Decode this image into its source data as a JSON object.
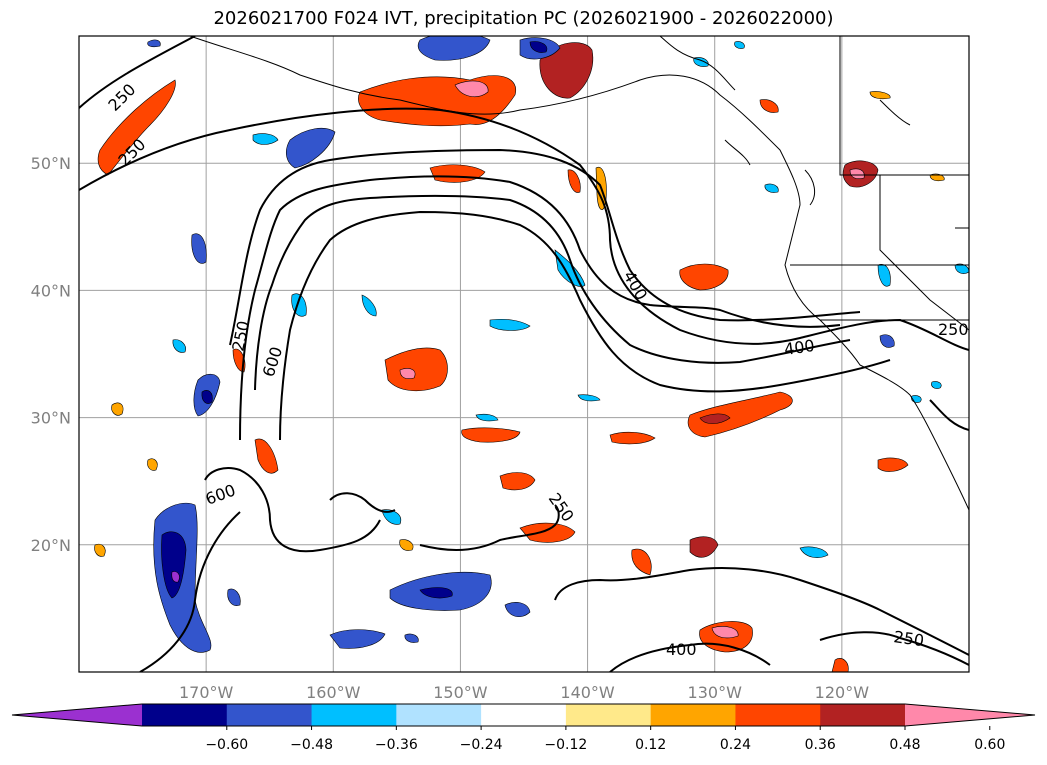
{
  "title": "2026021700 F024 IVT, precipitation PC (2026021900 - 2026022000)",
  "map": {
    "projection": "cylindrical",
    "lon_range": [
      -180,
      -110
    ],
    "lat_range": [
      10,
      60
    ],
    "lat_ticks": [
      {
        "value": 20,
        "label": "20°N"
      },
      {
        "value": 30,
        "label": "30°N"
      },
      {
        "value": 40,
        "label": "40°N"
      },
      {
        "value": 50,
        "label": "50°N"
      }
    ],
    "lon_ticks": [
      {
        "value": -170,
        "label": "170°W"
      },
      {
        "value": -160,
        "label": "160°W"
      },
      {
        "value": -150,
        "label": "150°W"
      },
      {
        "value": -140,
        "label": "140°W"
      },
      {
        "value": -130,
        "label": "130°W"
      },
      {
        "value": -120,
        "label": "120°W"
      }
    ],
    "grid": true,
    "contour_labels": [
      "250",
      "250",
      "250",
      "600",
      "400",
      "600",
      "250",
      "400",
      "400",
      "250",
      "250"
    ]
  },
  "colorbar": {
    "extend": "both",
    "colors": [
      "#9b30d0",
      "#00008b",
      "#3355cc",
      "#00bfff",
      "#b0e2ff",
      "#ffffff",
      "#ffe98a",
      "#ffa500",
      "#ff4500",
      "#b22222",
      "#ff88aa"
    ],
    "tick_labels": [
      "−0.60",
      "−0.48",
      "−0.36",
      "−0.24",
      "−0.12",
      "0.12",
      "0.24",
      "0.36",
      "0.48",
      "0.60"
    ]
  }
}
